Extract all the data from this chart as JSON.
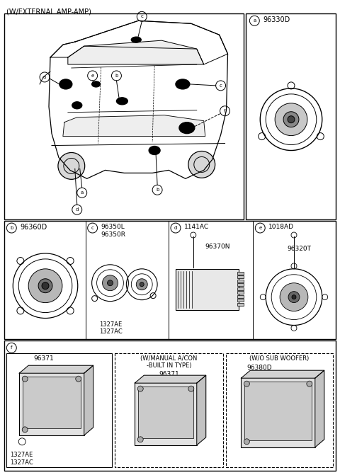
{
  "title": "(W/EXTERNAL AMP-AMP)",
  "bg_color": "#ffffff",
  "line_color": "#000000",
  "text_color": "#000000",
  "fig_width": 4.8,
  "fig_height": 6.71,
  "panel_a_partno": "96330D",
  "panel_b_partno": "96360D",
  "panel_c_parts": [
    "96350L",
    "96350R",
    "1327AE",
    "1327AC"
  ],
  "panel_d_parts": [
    "1141AC",
    "96370N"
  ],
  "panel_e_parts": [
    "1018AD",
    "96320T"
  ],
  "panel_f1_parts": [
    "96371",
    "1327AE",
    "1327AC"
  ],
  "panel_f2_label1": "(W/MANUAL A/CON",
  "panel_f2_label2": "-BUILT IN TYPE)",
  "panel_f2_parts": [
    "96371"
  ],
  "panel_f3_label": "(W/O SUB WOOFER)",
  "panel_f3_parts": [
    "96380D"
  ]
}
